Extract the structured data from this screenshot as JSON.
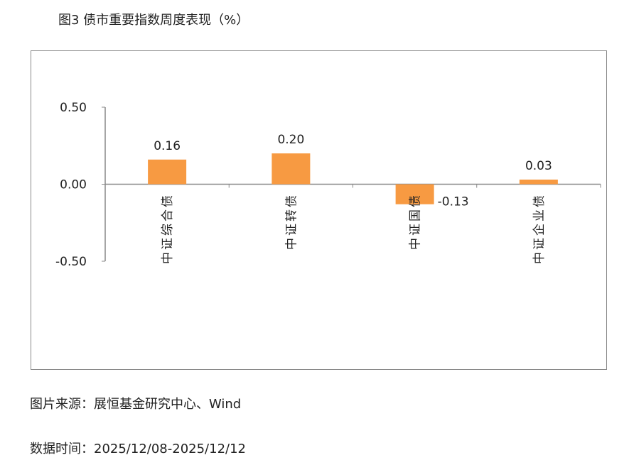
{
  "title": "图3 债市重要指数周度表现（%）",
  "source": "图片来源：展恒基金研究中心、Wind",
  "date_range": "数据时间：2025/12/08-2025/12/12",
  "chart_data": {
    "type": "bar",
    "categories": [
      "中证综合债",
      "中证转债",
      "中证国债",
      "中证企业债"
    ],
    "values": [
      0.16,
      0.2,
      -0.13,
      0.03
    ],
    "data_labels": [
      "0.16",
      "0.20",
      "-0.13",
      "0.03"
    ],
    "yticks": [
      "0.50",
      "0.00",
      "-0.50"
    ],
    "ylim": [
      -0.5,
      0.5
    ],
    "grid": false,
    "bar_color": "#F79A42"
  }
}
